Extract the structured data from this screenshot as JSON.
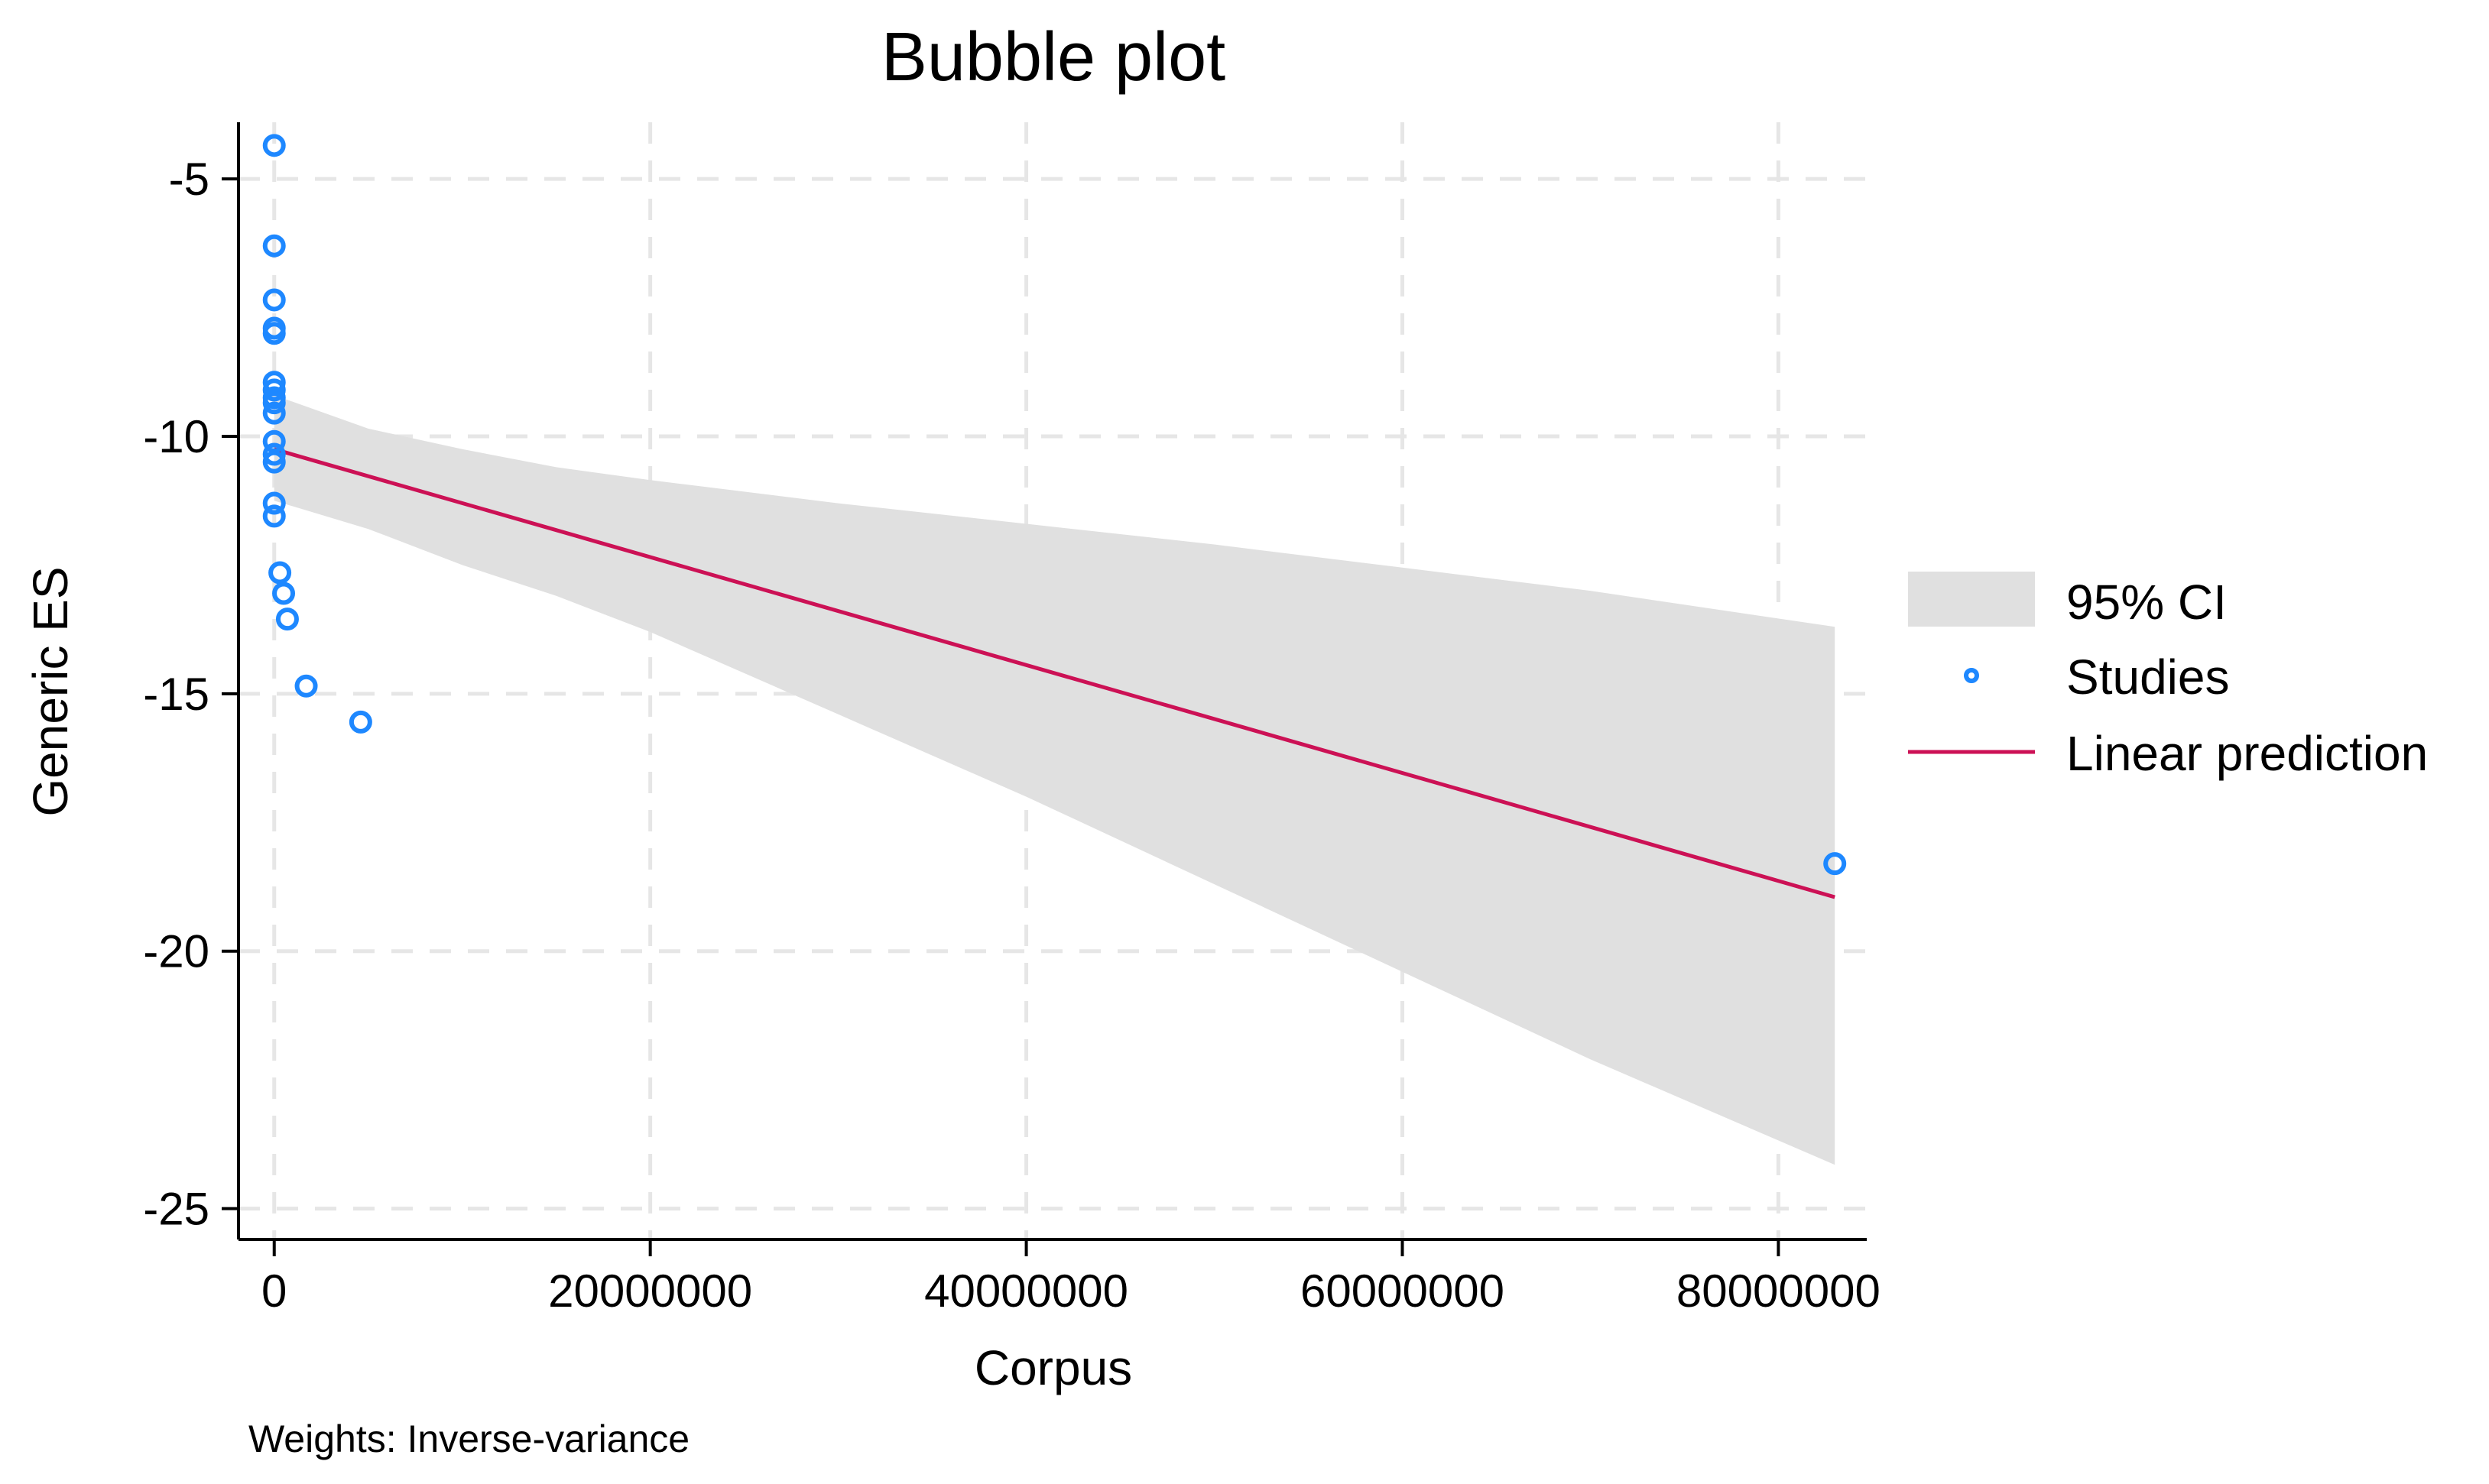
{
  "chart_data": {
    "type": "scatter",
    "title": "Bubble plot",
    "xlabel": "Corpus",
    "ylabel": "Generic ES",
    "note": "Weights: Inverse-variance",
    "xlim": [
      -1900000,
      84700000
    ],
    "ylim": [
      -25.6,
      -3.9
    ],
    "xticks": [
      0,
      20000000,
      40000000,
      60000000,
      80000000
    ],
    "xtick_labels": [
      "0",
      "20000000",
      "40000000",
      "60000000",
      "80000000"
    ],
    "yticks": [
      -5,
      -10,
      -15,
      -20,
      -25
    ],
    "ytick_labels": [
      "-5",
      "-10",
      "-15",
      "-20",
      "-25"
    ],
    "grid": true,
    "legend_position": "right",
    "legend": {
      "ci_label": "95% CI",
      "studies_label": "Studies",
      "prediction_label": "Linear prediction"
    },
    "colors": {
      "studies": "#1e88ff",
      "prediction": "#cc1155",
      "ci_band": "#e0e0e0",
      "grid": "#e6e6e6"
    },
    "studies": {
      "name": "Studies",
      "points": [
        {
          "x": 0,
          "y": -4.35
        },
        {
          "x": 0,
          "y": -6.3
        },
        {
          "x": 0,
          "y": -7.35
        },
        {
          "x": 0,
          "y": -7.9
        },
        {
          "x": 0,
          "y": -8.0
        },
        {
          "x": 0,
          "y": -8.95
        },
        {
          "x": 0,
          "y": -9.1
        },
        {
          "x": 0,
          "y": -9.25
        },
        {
          "x": 0,
          "y": -9.35
        },
        {
          "x": 0,
          "y": -9.55
        },
        {
          "x": 0,
          "y": -10.1
        },
        {
          "x": 0,
          "y": -10.35
        },
        {
          "x": 0,
          "y": -10.5
        },
        {
          "x": 0,
          "y": -11.3
        },
        {
          "x": 0,
          "y": -11.55
        },
        {
          "x": 300000,
          "y": -12.65
        },
        {
          "x": 500000,
          "y": -13.05
        },
        {
          "x": 700000,
          "y": -13.55
        },
        {
          "x": 1700000,
          "y": -14.85
        },
        {
          "x": 4600000,
          "y": -15.55
        },
        {
          "x": 83000000,
          "y": -18.3
        }
      ]
    },
    "linear_prediction": {
      "name": "Linear prediction",
      "x": [
        0,
        83000000
      ],
      "y": [
        -10.25,
        -18.95
      ]
    },
    "ci_95": {
      "name": "95% CI",
      "x": [
        0,
        5000000,
        10000000,
        15000000,
        20000000,
        30000000,
        40000000,
        50000000,
        60000000,
        70000000,
        83000000
      ],
      "lower": [
        -11.25,
        -11.8,
        -12.5,
        -13.1,
        -13.8,
        -15.4,
        -17.0,
        -18.7,
        -20.4,
        -22.1,
        -24.15
      ],
      "upper": [
        -9.2,
        -9.85,
        -10.25,
        -10.6,
        -10.85,
        -11.3,
        -11.7,
        -12.1,
        -12.55,
        -13.0,
        -13.7
      ]
    }
  }
}
